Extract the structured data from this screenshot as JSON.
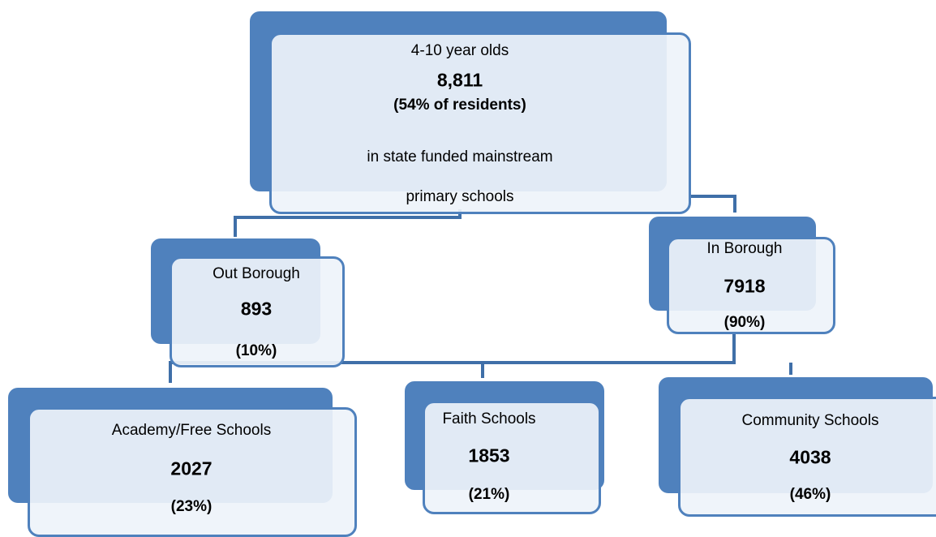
{
  "nodes": [
    {
      "label": "4-10 year olds",
      "value": "8,811",
      "share": "(54% of residents)",
      "note": [
        "in state funded mainstream",
        "primary schools"
      ]
    },
    {
      "label": "Out Borough",
      "value": "893",
      "share": "(10%)"
    },
    {
      "label": "In Borough",
      "value": "7918",
      "share": "(90%)"
    },
    {
      "label": "Academy/Free Schools",
      "value": "2027",
      "share": "(23%)"
    },
    {
      "label": "Faith Schools",
      "value": "1853",
      "share": "(21%)"
    },
    {
      "label": "Community Schools",
      "value": "4038",
      "share": "(46%)"
    }
  ]
}
